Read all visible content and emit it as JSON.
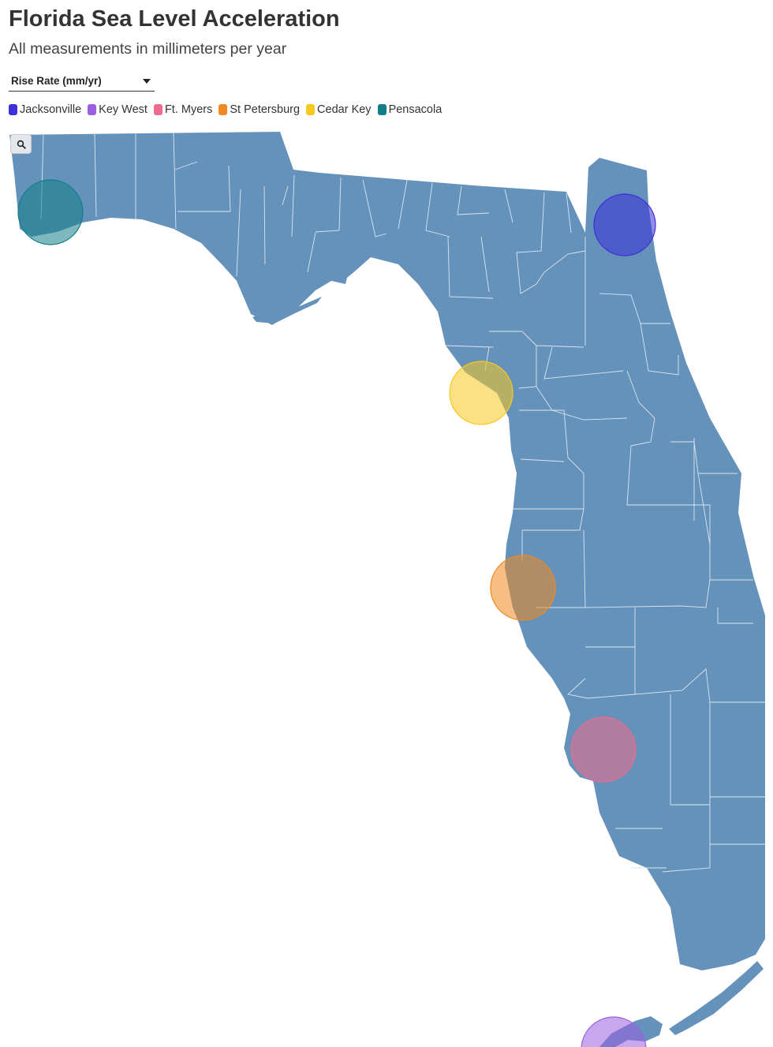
{
  "header": {
    "title": "Florida Sea Level Acceleration",
    "subtitle": "All measurements in millimeters per year"
  },
  "controls": {
    "metric_select_label": "Rise Rate (mm/yr)"
  },
  "legend": [
    {
      "label": "Jacksonville",
      "color": "#3d2fd9"
    },
    {
      "label": "Key West",
      "color": "#9a5fe2"
    },
    {
      "label": "Ft. Myers",
      "color": "#ee6a8e"
    },
    {
      "label": "St Petersburg",
      "color": "#f0891f"
    },
    {
      "label": "Cedar Key",
      "color": "#f8c81e"
    },
    {
      "label": "Pensacola",
      "color": "#127d89"
    }
  ],
  "map": {
    "region": "Florida",
    "land_color": "#6592bb",
    "county_border_color": "#dbe4ee",
    "zoom_icon": "search-icon",
    "stations": [
      {
        "name": "Jacksonville",
        "color": "#3d2fd9"
      },
      {
        "name": "Key West",
        "color": "#9a5fe2"
      },
      {
        "name": "Ft. Myers",
        "color": "#ee6a8e"
      },
      {
        "name": "St Petersburg",
        "color": "#f0891f"
      },
      {
        "name": "Cedar Key",
        "color": "#f8c81e"
      },
      {
        "name": "Pensacola",
        "color": "#127d89"
      }
    ]
  }
}
